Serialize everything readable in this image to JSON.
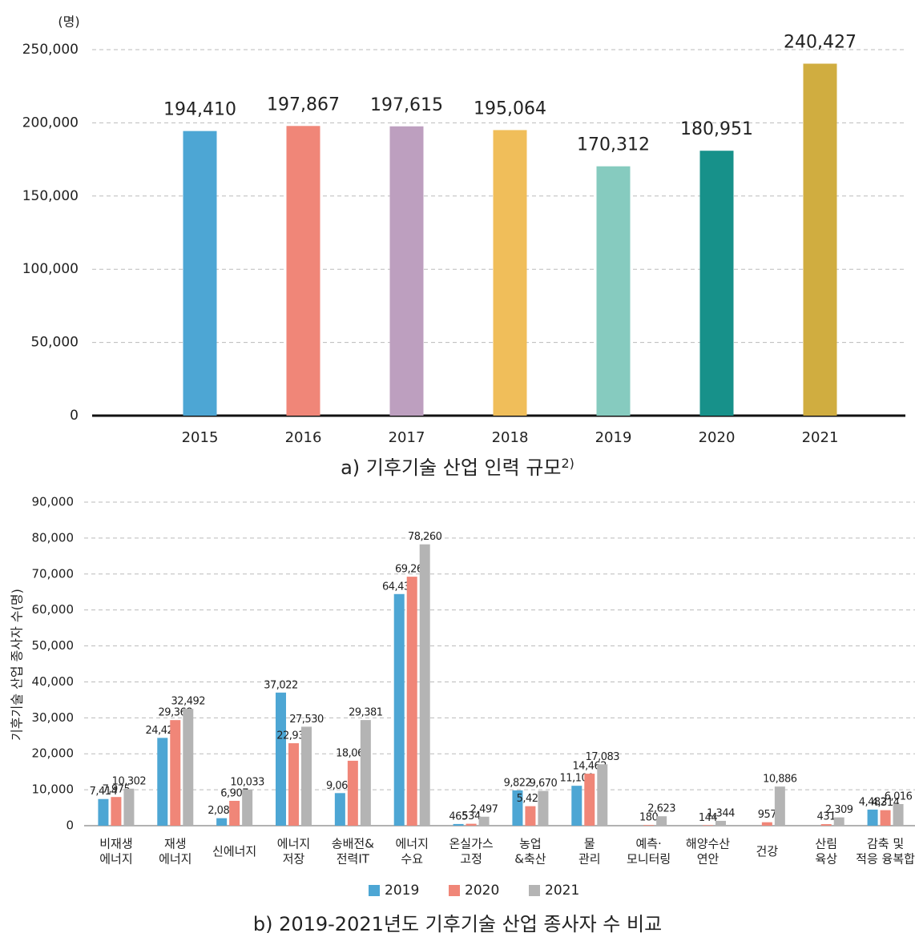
{
  "chart_data": [
    {
      "type": "bar",
      "unit_label": "(명)",
      "caption": "a) 기후기술 산업 인력 규모",
      "footnote": "2)",
      "categories": [
        "2015",
        "2016",
        "2017",
        "2018",
        "2019",
        "2020",
        "2021"
      ],
      "values": [
        194410,
        197867,
        197615,
        195064,
        170312,
        180951,
        240427
      ],
      "value_labels": [
        "194,410",
        "197,867",
        "197,615",
        "195,064",
        "170,312",
        "180,951",
        "240,427"
      ],
      "colors": [
        "#4da6d4",
        "#f08678",
        "#bd9fbf",
        "#f0be5a",
        "#86cbbf",
        "#17918a",
        "#d0ad40"
      ],
      "ylim": [
        0,
        250000
      ],
      "yticks": [
        0,
        {
          "value": 50000,
          "label": "50,000"
        },
        {
          "value": 100000,
          "label": "100,000"
        },
        {
          "value": 150000,
          "label": "150,000"
        },
        {
          "value": 200000,
          "label": "200,000"
        },
        {
          "value": 250000,
          "label": "250,000"
        }
      ],
      "grid": true
    },
    {
      "type": "bar",
      "ylabel": "기후기술 산업 종사자 수(명)",
      "caption": "b) 2019-2021년도 기후기술 산업 종사자 수 비교",
      "categories": [
        "비재생\n에너지",
        "재생\n에너지",
        "신에너지",
        "에너지\n저장",
        "송배전&\n전력IT",
        "에너지\n수요",
        "온실가스\n고정",
        "농업\n&축산",
        "물\n관리",
        "예측·\n모니터링",
        "해양수산\n연안",
        "건강",
        "산림\n육상",
        "감축 및\n적응 융복합"
      ],
      "series": [
        {
          "name": "2019",
          "color": "#4da6d4",
          "values": [
            7414,
            24425,
            2082,
            37022,
            9066,
            64433,
            465,
            9822,
            11100,
            null,
            null,
            null,
            null,
            4482
          ],
          "value_labels": [
            "7,414",
            "24,425",
            "2,082",
            "37,022",
            "9,066",
            "64,433",
            "465",
            "9,822",
            "11,100",
            null,
            null,
            null,
            null,
            "4,482"
          ]
        },
        {
          "name": "2020",
          "color": "#f08678",
          "values": [
            7975,
            29368,
            6907,
            22934,
            18061,
            69261,
            534,
            5421,
            14462,
            180,
            144,
            957,
            431,
            4314
          ],
          "value_labels": [
            "7,975",
            "29,368",
            "6,907",
            "22,934",
            "18,061",
            "69,261",
            "534",
            "5,421",
            "14,462",
            "180",
            "144",
            "957",
            "431",
            "4,314"
          ]
        },
        {
          "name": "2021",
          "color": "#b4b4b4",
          "values": [
            10302,
            32492,
            10033,
            27530,
            29381,
            78260,
            2497,
            9670,
            17083,
            2623,
            1344,
            10886,
            2309,
            6016
          ],
          "value_labels": [
            "10,302",
            "32,492",
            "10,033",
            "27,530",
            "29,381",
            "78,260",
            "2,497",
            "9,670",
            "17,083",
            "2,623",
            "1,344",
            "10,886",
            "2,309",
            "6,016"
          ]
        }
      ],
      "ylim": [
        0,
        90000
      ],
      "yticks": [
        0,
        {
          "value": 10000,
          "label": "10,000"
        },
        {
          "value": 20000,
          "label": "20,000"
        },
        {
          "value": 30000,
          "label": "30,000"
        },
        {
          "value": 40000,
          "label": "40,000"
        },
        {
          "value": 50000,
          "label": "50,000"
        },
        {
          "value": 60000,
          "label": "60,000"
        },
        {
          "value": 70000,
          "label": "70,000"
        },
        {
          "value": 80000,
          "label": "80,000"
        },
        {
          "value": 90000,
          "label": "90,000"
        }
      ],
      "grid": true,
      "legend": "bottom"
    }
  ]
}
